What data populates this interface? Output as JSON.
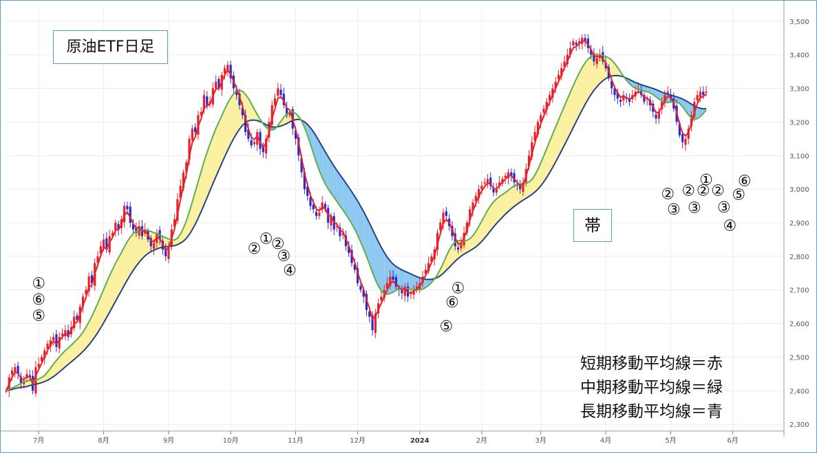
{
  "title": "原油ETF日足",
  "band_label": "帯",
  "legend_lines": [
    "短期移動平均線＝赤",
    "中期移動平均線＝緑",
    "長期移動平均線＝青"
  ],
  "annotations": [
    {
      "text": "①",
      "x": 11,
      "y": 2705
    },
    {
      "text": "⑥",
      "x": 11,
      "y": 2657
    },
    {
      "text": "⑤",
      "x": 11,
      "y": 2608
    },
    {
      "text": "②",
      "x": 84,
      "y": 2808
    },
    {
      "text": "①",
      "x": 88,
      "y": 2838
    },
    {
      "text": "②",
      "x": 92,
      "y": 2822
    },
    {
      "text": "③",
      "x": 94,
      "y": 2786
    },
    {
      "text": "④",
      "x": 96,
      "y": 2743
    },
    {
      "text": "①",
      "x": 153,
      "y": 2690
    },
    {
      "text": "⑥",
      "x": 151,
      "y": 2648
    },
    {
      "text": "⑤",
      "x": 149,
      "y": 2577
    },
    {
      "text": "①",
      "x": 237,
      "y": 3013
    },
    {
      "text": "②",
      "x": 224,
      "y": 2971
    },
    {
      "text": "③",
      "x": 226,
      "y": 2925
    },
    {
      "text": "②",
      "x": 231,
      "y": 2981
    },
    {
      "text": "③",
      "x": 233,
      "y": 2930
    },
    {
      "text": "②",
      "x": 236,
      "y": 2981
    },
    {
      "text": "②",
      "x": 241,
      "y": 2981
    },
    {
      "text": "③",
      "x": 243,
      "y": 2931
    },
    {
      "text": "④",
      "x": 245,
      "y": 2876
    },
    {
      "text": "⑥",
      "x": 250,
      "y": 3009
    },
    {
      "text": "⑤",
      "x": 248,
      "y": 2969
    }
  ],
  "chart_data": {
    "type": "candlestick",
    "y_ticks": [
      "3,500",
      "3,400",
      "3,300",
      "3,200",
      "3,100",
      "3,000",
      "2,900",
      "2,800",
      "2,700",
      "2,600",
      "2,500",
      "2,400",
      "2,300"
    ],
    "x_ticks": [
      {
        "label": "7月",
        "x": 11
      },
      {
        "label": "8月",
        "x": 33
      },
      {
        "label": "9月",
        "x": 55
      },
      {
        "label": "10月",
        "x": 76
      },
      {
        "label": "11月",
        "x": 98
      },
      {
        "label": "12月",
        "x": 119
      },
      {
        "label": "2024",
        "x": 140
      },
      {
        "label": "2月",
        "x": 161
      },
      {
        "label": "3月",
        "x": 181
      },
      {
        "label": "4月",
        "x": 203
      },
      {
        "label": "5月",
        "x": 225
      },
      {
        "label": "6月",
        "x": 246
      }
    ],
    "x_range": [
      0,
      261
    ],
    "ylim": [
      2280,
      3520
    ],
    "close": [
      2400,
      2440,
      2460,
      2470,
      2450,
      2420,
      2430,
      2450,
      2440,
      2400,
      2470,
      2480,
      2500,
      2520,
      2540,
      2550,
      2560,
      2530,
      2560,
      2570,
      2580,
      2560,
      2590,
      2620,
      2610,
      2650,
      2680,
      2700,
      2740,
      2720,
      2780,
      2800,
      2830,
      2850,
      2820,
      2860,
      2870,
      2900,
      2880,
      2910,
      2950,
      2940,
      2900,
      2880,
      2870,
      2890,
      2860,
      2880,
      2850,
      2830,
      2840,
      2870,
      2850,
      2820,
      2800,
      2830,
      2880,
      2910,
      2970,
      3010,
      3050,
      3080,
      3150,
      3180,
      3170,
      3220,
      3230,
      3280,
      3250,
      3260,
      3300,
      3320,
      3300,
      3340,
      3360,
      3370,
      3330,
      3300,
      3280,
      3250,
      3220,
      3170,
      3150,
      3130,
      3140,
      3170,
      3120,
      3110,
      3150,
      3200,
      3250,
      3270,
      3300,
      3280,
      3250,
      3220,
      3230,
      3180,
      3150,
      3100,
      3050,
      3000,
      2980,
      2950,
      2940,
      2920,
      2930,
      2960,
      2940,
      2900,
      2920,
      2880,
      2890,
      2860,
      2870,
      2830,
      2810,
      2780,
      2760,
      2720,
      2700,
      2680,
      2640,
      2620,
      2580,
      2630,
      2660,
      2680,
      2700,
      2720,
      2740,
      2730,
      2710,
      2700,
      2690,
      2710,
      2680,
      2690,
      2700,
      2710,
      2720,
      2740,
      2760,
      2780,
      2800,
      2820,
      2870,
      2900,
      2930,
      2920,
      2890,
      2860,
      2830,
      2820,
      2840,
      2870,
      2900,
      2940,
      2960,
      2980,
      3000,
      3010,
      3020,
      3030,
      3010,
      2990,
      3000,
      3020,
      3030,
      3040,
      3050,
      3040,
      3020,
      3010,
      3000,
      3020,
      3060,
      3100,
      3140,
      3170,
      3200,
      3220,
      3240,
      3260,
      3280,
      3300,
      3320,
      3340,
      3360,
      3380,
      3400,
      3420,
      3440,
      3430,
      3440,
      3450,
      3440,
      3420,
      3400,
      3380,
      3390,
      3400,
      3380,
      3360,
      3330,
      3300,
      3280,
      3270,
      3260,
      3280,
      3270,
      3260,
      3280,
      3290,
      3300,
      3280,
      3260,
      3270,
      3250,
      3230,
      3210,
      3230,
      3260,
      3280,
      3290,
      3270,
      3240,
      3200,
      3160,
      3140,
      3150,
      3180,
      3220,
      3260,
      3280,
      3290,
      3280,
      3290
    ],
    "series": [
      {
        "name": "短期移動平均線",
        "color": "#e8202a"
      },
      {
        "name": "中期移動平均線",
        "color": "#5fae4b"
      },
      {
        "name": "長期移動平均線",
        "color": "#27408b"
      }
    ],
    "band_up_color": "#fbf0a0",
    "band_down_color": "#8cc8f0",
    "candle_up_color": "#e8202a",
    "candle_down_color": "#2a2acf",
    "grid": true,
    "legend": "bottom-right"
  }
}
